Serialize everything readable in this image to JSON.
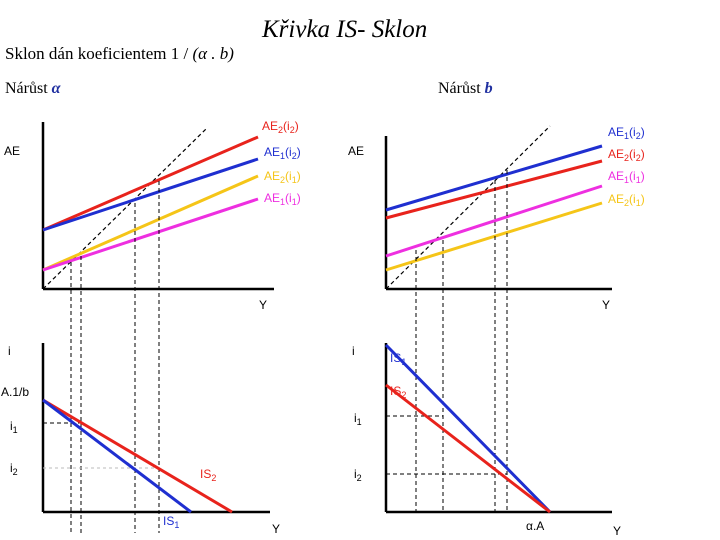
{
  "title": "Křivka IS- Sklon",
  "subtitle": {
    "text": "Sklon dán koeficientem 1 / ",
    "formula": "(α . b)"
  },
  "left_header": {
    "text": "Nárůst ",
    "symbol": "α"
  },
  "right_header": {
    "text": "Nárůst ",
    "symbol": "b"
  },
  "left_top": {
    "y_label": "AE",
    "x_label": "Y",
    "lines": [
      {
        "label_main": "AE",
        "label_sub": "2",
        "label_arg": "(i",
        "label_arg_sub": "2",
        "label_close": ")",
        "color": "#e8231c"
      },
      {
        "label_main": "AE",
        "label_sub": "1",
        "label_arg": "(i",
        "label_arg_sub": "2",
        "label_close": ")",
        "color": "#1f2fd0"
      },
      {
        "label_main": "AE",
        "label_sub": "2",
        "label_arg": "(i",
        "label_arg_sub": "1",
        "label_close": ")",
        "color": "#f5c518"
      },
      {
        "label_main": "AE",
        "label_sub": "1",
        "label_arg": "(i",
        "label_arg_sub": "1",
        "label_close": ")",
        "color": "#ee2fe0"
      }
    ]
  },
  "right_top": {
    "y_label": "AE",
    "x_label": "Y",
    "lines": [
      {
        "label_main": "AE",
        "label_sub": "1",
        "label_arg": "(i",
        "label_arg_sub": "2",
        "label_close": ")",
        "color": "#1f2fd0"
      },
      {
        "label_main": "AE",
        "label_sub": "2",
        "label_arg": "(i",
        "label_arg_sub": "2",
        "label_close": ")",
        "color": "#e8231c"
      },
      {
        "label_main": "AE",
        "label_sub": "1",
        "label_arg": "(i",
        "label_arg_sub": "1",
        "label_close": ")",
        "color": "#ee2fe0"
      },
      {
        "label_main": "AE",
        "label_sub": "2",
        "label_arg": "(i",
        "label_arg_sub": "1",
        "label_close": ")",
        "color": "#f5c518"
      }
    ]
  },
  "left_bottom": {
    "y_label": "i",
    "x_label": "Y",
    "intercept_label": "A.1/b",
    "i1_main": "i",
    "i1_sub": "1",
    "i2_main": "i",
    "i2_sub": "2",
    "is2_main": "IS",
    "is2_sub": "2",
    "is1_main": "IS",
    "is1_sub": "1",
    "colors": {
      "is1": "#1f2fd0",
      "is2": "#e8231c"
    }
  },
  "right_bottom": {
    "y_label": "i",
    "x_label": "Y",
    "intercept_label": "α.A",
    "i1_main": "i",
    "i1_sub": "1",
    "i2_main": "i",
    "i2_sub": "2",
    "is1_main": "IS",
    "is1_sub": "1",
    "is2_main": "IS",
    "is2_sub": "2",
    "colors": {
      "is1": "#1f2fd0",
      "is2": "#e8231c"
    }
  }
}
